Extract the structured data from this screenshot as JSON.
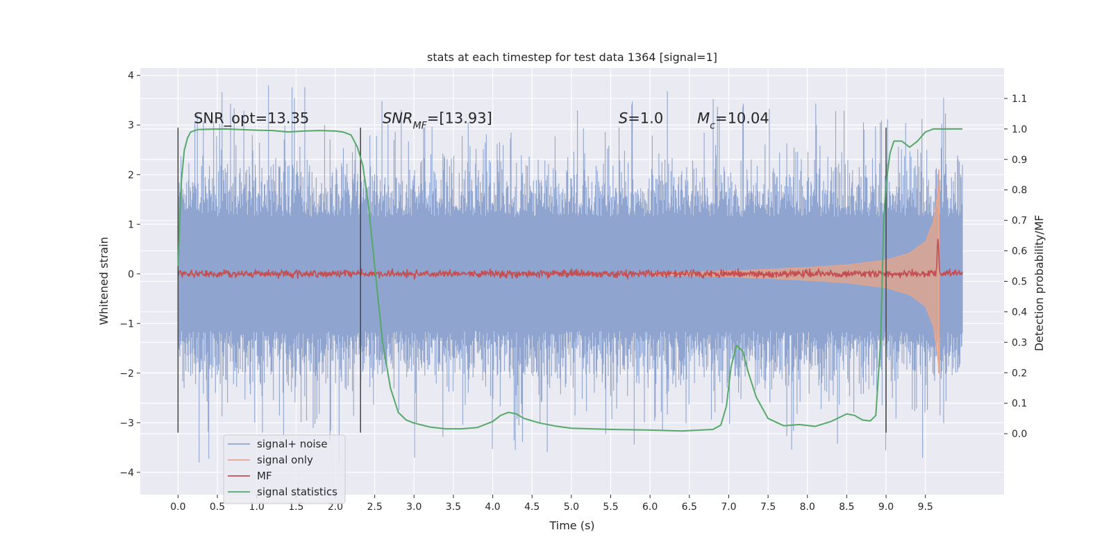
{
  "chart_data": {
    "type": "line",
    "title": "stats at each timestep for test data 1364 [signal=1]",
    "xlabel": "Time (s)",
    "ylabel": "Whitened strain",
    "ylabel_right": "Detection probability/MF",
    "xlim": [
      -0.48,
      10.5
    ],
    "ylim": [
      -4.45,
      4.15
    ],
    "ylim_right": [
      -0.2,
      1.2
    ],
    "xticks": [
      0.0,
      0.5,
      1.0,
      1.5,
      2.0,
      2.5,
      3.0,
      3.5,
      4.0,
      4.5,
      5.0,
      5.5,
      6.0,
      6.5,
      7.0,
      7.5,
      8.0,
      8.5,
      9.0,
      9.5
    ],
    "xtick_labels": [
      "0.0",
      "0.5",
      "1.0",
      "1.5",
      "2.0",
      "2.5",
      "3.0",
      "3.5",
      "4.0",
      "4.5",
      "5.0",
      "5.5",
      "6.0",
      "6.5",
      "7.0",
      "7.5",
      "8.0",
      "8.5",
      "9.0",
      "9.5"
    ],
    "yticks": [
      -4,
      -3,
      -2,
      -1,
      0,
      1,
      2,
      3,
      4
    ],
    "ytick_labels": [
      "−4",
      "−3",
      "−2",
      "−1",
      "0",
      "1",
      "2",
      "3",
      "4"
    ],
    "yticks_right": [
      0.0,
      0.1,
      0.2,
      0.3,
      0.4,
      0.5,
      0.6,
      0.7,
      0.8,
      0.9,
      1.0,
      1.1
    ],
    "ytick_labels_right": [
      "0.0",
      "0.1",
      "0.2",
      "0.3",
      "0.4",
      "0.5",
      "0.6",
      "0.7",
      "0.8",
      "0.9",
      "1.0",
      "1.1"
    ],
    "grid": true,
    "legend_position": "lower-left",
    "colors": {
      "signal_noise": "#8fa5cf",
      "signal_only": "#e8a58a",
      "mf": "#c44e52",
      "signal_statistics": "#55a868",
      "vlines": "#444444",
      "plot_bg": "#eaeaf2"
    },
    "series": [
      {
        "name": "signal+ noise",
        "axis": "left",
        "style": "dense noise, envelope approx ±1.2 with spikes up to ±3.8",
        "x_range": [
          0.0,
          9.97
        ],
        "typical_amplitude": 1.2,
        "max_spike": 3.8
      },
      {
        "name": "signal only",
        "axis": "left",
        "style": "chirp envelope growing toward merger",
        "x": [
          6.0,
          7.0,
          7.5,
          8.0,
          8.5,
          9.0,
          9.3,
          9.5,
          9.6,
          9.65,
          9.67
        ],
        "envelope": [
          0.02,
          0.06,
          0.09,
          0.13,
          0.18,
          0.28,
          0.42,
          0.65,
          1.05,
          1.6,
          1.9
        ]
      },
      {
        "name": "MF",
        "axis": "right",
        "style": "near-flat line ~0.525 with small fluctuations, peak ~0.66 at 9.66",
        "x_range": [
          0.0,
          9.97
        ],
        "baseline": 0.525,
        "peak": {
          "x": 9.66,
          "y": 0.66
        }
      },
      {
        "name": "signal statistics",
        "axis": "right",
        "x": [
          0.0,
          0.04,
          0.08,
          0.12,
          0.16,
          0.25,
          0.4,
          0.6,
          0.8,
          1.0,
          1.2,
          1.4,
          1.6,
          1.8,
          2.0,
          2.1,
          2.2,
          2.28,
          2.35,
          2.42,
          2.5,
          2.6,
          2.7,
          2.8,
          2.9,
          3.0,
          3.2,
          3.4,
          3.6,
          3.8,
          4.0,
          4.1,
          4.2,
          4.3,
          4.4,
          4.6,
          4.8,
          5.0,
          5.5,
          6.0,
          6.4,
          6.8,
          6.9,
          6.97,
          7.03,
          7.1,
          7.18,
          7.25,
          7.35,
          7.5,
          7.7,
          7.9,
          8.1,
          8.3,
          8.5,
          8.6,
          8.7,
          8.8,
          8.87,
          8.93,
          8.97,
          9.0,
          9.05,
          9.1,
          9.2,
          9.3,
          9.4,
          9.5,
          9.6,
          9.7,
          9.8,
          9.97
        ],
        "y": [
          0.55,
          0.82,
          0.93,
          0.97,
          0.99,
          0.998,
          0.999,
          1.0,
          0.998,
          0.996,
          0.995,
          0.99,
          0.993,
          0.995,
          0.993,
          0.99,
          0.98,
          0.94,
          0.88,
          0.75,
          0.55,
          0.3,
          0.15,
          0.07,
          0.045,
          0.035,
          0.022,
          0.016,
          0.016,
          0.02,
          0.04,
          0.06,
          0.07,
          0.065,
          0.05,
          0.035,
          0.025,
          0.018,
          0.014,
          0.012,
          0.009,
          0.014,
          0.028,
          0.09,
          0.22,
          0.29,
          0.27,
          0.2,
          0.12,
          0.05,
          0.026,
          0.03,
          0.024,
          0.04,
          0.065,
          0.06,
          0.045,
          0.042,
          0.06,
          0.3,
          0.7,
          0.82,
          0.92,
          0.96,
          0.96,
          0.94,
          0.96,
          0.99,
          1.0,
          1.0,
          1.0,
          1.0
        ]
      }
    ],
    "vertical_lines": [
      {
        "x": 0.0,
        "y": [
          -3.2,
          2.95
        ]
      },
      {
        "x": 2.32,
        "y": [
          -3.2,
          2.95
        ]
      },
      {
        "x": 9.0,
        "y": [
          -3.2,
          2.95
        ]
      }
    ],
    "annotations": [
      {
        "id": "snr-opt",
        "parts": [
          [
            "SNR_opt=13.35",
            false
          ]
        ],
        "x": 0.2,
        "y": 3.04
      },
      {
        "id": "snr-mf",
        "parts": [
          [
            "SNR",
            true
          ],
          [
            "MF",
            true,
            "sub"
          ],
          [
            "=[13.93]",
            false
          ]
        ],
        "x": 2.6,
        "y": 3.04
      },
      {
        "id": "s-value",
        "parts": [
          [
            "S",
            true
          ],
          [
            "=1.0",
            false
          ]
        ],
        "x": 5.6,
        "y": 3.04
      },
      {
        "id": "mc-value",
        "parts": [
          [
            "M",
            true
          ],
          [
            "c",
            true,
            "sub"
          ],
          [
            "=10.04",
            false
          ]
        ],
        "x": 6.6,
        "y": 3.04
      }
    ],
    "legend": [
      "signal+ noise",
      "signal only",
      "MF",
      "signal statistics"
    ]
  }
}
